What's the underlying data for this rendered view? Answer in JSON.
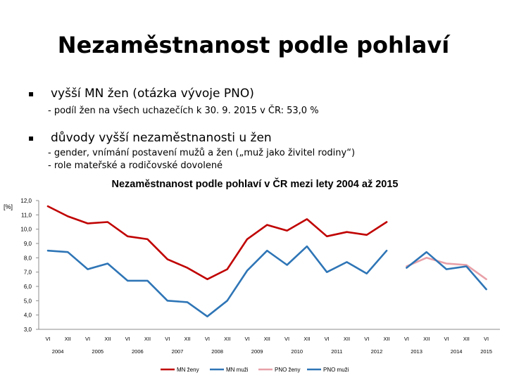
{
  "slide": {
    "title": "Nezaměstnanost podle pohlaví",
    "bullet1": {
      "marker": "▪",
      "text": "vyšší MN žen (otázka vývoje PNO)",
      "sub": "- podíl žen na všech uchazečích k 30. 9. 2015 v ČR: 53,0 %"
    },
    "bullet2": {
      "marker": "▪",
      "text": "důvody vyšší nezaměstnanosti u žen",
      "sub1": "- gender, vnímání postavení mužů a žen („muž jako živitel rodiny“)",
      "sub2": "- role mateřské a rodičovské dovolené"
    }
  },
  "chart_data": {
    "type": "line",
    "title": "Nezaměstnanost podle pohlaví v ČR mezi lety 2004 až 2015",
    "ylabel": "[%]",
    "ylim": [
      3.0,
      12.0
    ],
    "yticks": [
      "12,0",
      "11,0",
      "10,0",
      "9,0",
      "8,0",
      "7,0",
      "6,0",
      "5,0",
      "4,0",
      "3,0"
    ],
    "categories": [
      "VI",
      "XII",
      "VI",
      "XII",
      "VI",
      "XII",
      "VI",
      "XII",
      "VI",
      "XII",
      "VI",
      "XII",
      "VI",
      "XII",
      "VI",
      "XII",
      "VI",
      "XII",
      "VI",
      "XII",
      "VI",
      "XII",
      "VI"
    ],
    "years": [
      "2004",
      "2005",
      "2006",
      "2007",
      "2008",
      "2009",
      "2010",
      "2011",
      "2012",
      "2013",
      "2014",
      "2015"
    ],
    "series": [
      {
        "name": "MN ženy",
        "color": "#c00000",
        "values": [
          11.6,
          10.9,
          10.4,
          10.5,
          9.5,
          9.3,
          7.9,
          7.3,
          6.5,
          7.2,
          9.3,
          10.3,
          9.9,
          10.7,
          9.5,
          9.8,
          9.6,
          10.5,
          null,
          null,
          null,
          null,
          null
        ]
      },
      {
        "name": "MN muži",
        "color": "#2e75b6",
        "values": [
          8.5,
          8.4,
          7.2,
          7.6,
          6.4,
          6.4,
          5.0,
          4.9,
          3.9,
          5.0,
          7.1,
          8.5,
          7.5,
          8.8,
          7.0,
          7.7,
          6.9,
          8.5,
          null,
          null,
          null,
          null,
          null
        ]
      },
      {
        "name": "PNO ženy",
        "color": "#e8a0a8",
        "values": [
          null,
          null,
          null,
          null,
          null,
          null,
          null,
          null,
          null,
          null,
          null,
          null,
          null,
          null,
          null,
          null,
          null,
          null,
          7.4,
          8.0,
          7.6,
          7.5,
          6.5
        ]
      },
      {
        "name": "PNO muži",
        "color": "#2e75b6",
        "values": [
          null,
          null,
          null,
          null,
          null,
          null,
          null,
          null,
          null,
          null,
          null,
          null,
          null,
          null,
          null,
          null,
          null,
          null,
          7.3,
          8.4,
          7.2,
          7.4,
          5.8
        ]
      }
    ]
  }
}
